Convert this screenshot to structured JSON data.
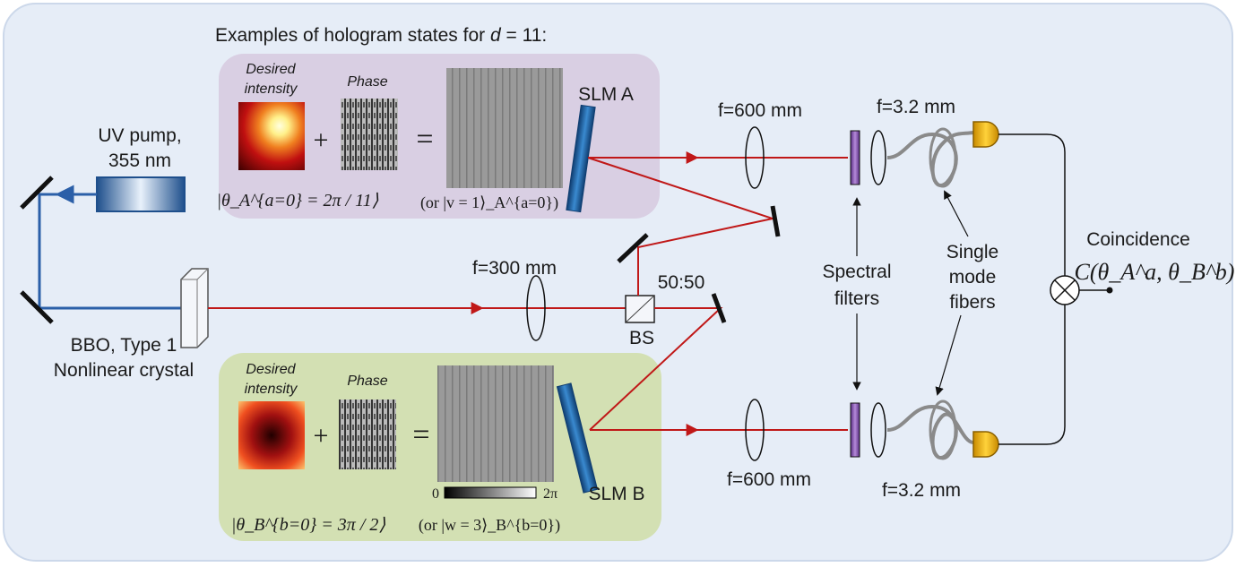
{
  "header": {
    "prefix": "Examples of hologram states for ",
    "var": "d",
    "suffix": " = 11:"
  },
  "labels": {
    "uv_pump_line1": "UV pump,",
    "uv_pump_line2": "355 nm",
    "bbo_line1": "BBO, Type 1",
    "bbo_line2": "Nonlinear crystal",
    "f300": "f=300 mm",
    "f600_top": "f=600 mm",
    "f600_bottom": "f=600 mm",
    "f32_top": "f=3.2 mm",
    "f32_bottom": "f=3.2 mm",
    "ratio": "50:50",
    "bs": "BS",
    "slm_a": "SLM A",
    "slm_b": "SLM B",
    "spectral_line1": "Spectral",
    "spectral_line2": "filters",
    "smf_line1": "Single",
    "smf_line2": "mode",
    "smf_line3": "fibers",
    "coincidence": "Coincidence"
  },
  "panel_a": {
    "desired_line1": "Desired",
    "desired_line2": "intensity",
    "phase": "Phase",
    "state_label": "|θ_A^{a=0} = 2π / 11⟩",
    "alt_label": "(or |v = 1⟩_A^{a=0})"
  },
  "panel_b": {
    "desired_line1": "Desired",
    "desired_line2": "intensity",
    "phase": "Phase",
    "state_label": "|θ_B^{b=0} = 3π / 2⟩",
    "alt_label": "(or |w = 3⟩_B^{b=0})",
    "scale_min": "0",
    "scale_max": "2π"
  },
  "ops": {
    "plus": "+",
    "equals": "="
  },
  "coincidence_formula": "C(θ_A^a, θ_B^b)",
  "colors": {
    "background_panel": "#e6edf7",
    "panel_a": "#d9cfe3",
    "panel_b": "#d3e0b3",
    "uv_beam": "#2b5fa8",
    "ir_beam": "#c01818",
    "slm_blue": "#1f5f9e",
    "detector": "#f0b400",
    "filter": "#8a5db0"
  }
}
